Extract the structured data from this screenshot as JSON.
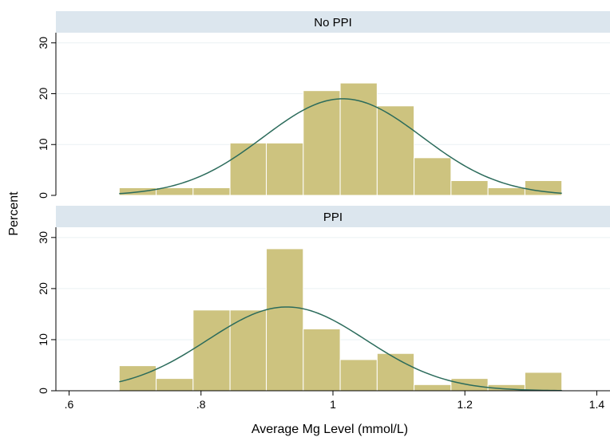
{
  "chart_data": {
    "type": "bar",
    "subtype": "histogram-with-normal-curve",
    "xlabel": "Average Mg Level (mmol/L)",
    "ylabel": "Percent",
    "xlim": [
      0.58,
      1.42
    ],
    "ylim": [
      0,
      32
    ],
    "x_ticks": [
      0.6,
      0.8,
      1,
      1.2,
      1.4
    ],
    "x_tick_labels": [
      ".6",
      ".8",
      "1",
      "1.2",
      "1.4"
    ],
    "y_ticks": [
      0,
      10,
      20,
      30
    ],
    "y_tick_labels": [
      "0",
      "10",
      "20",
      "30"
    ],
    "grid": true,
    "bar_color": "#cdc37f",
    "bar_edge_color": "#ffffff",
    "curve_color": "#2b6b5b",
    "strip_color": "#dce6ee",
    "bin_edges": [
      0.676,
      0.732,
      0.788,
      0.844,
      0.899,
      0.955,
      1.011,
      1.067,
      1.123,
      1.179,
      1.235,
      1.291,
      1.347
    ],
    "panels": [
      {
        "name": "No PPI",
        "values": [
          1.5,
          1.5,
          1.5,
          10.3,
          10.3,
          20.6,
          22.1,
          17.6,
          7.4,
          2.9,
          1.5,
          2.9
        ],
        "normal_curve": {
          "mean": 1.015,
          "sd": 0.12,
          "peak": 19.0
        }
      },
      {
        "name": "PPI",
        "values": [
          4.9,
          2.4,
          15.8,
          15.8,
          27.8,
          12.1,
          6.1,
          7.3,
          1.2,
          2.4,
          1.2,
          3.6
        ],
        "normal_curve": {
          "mean": 0.93,
          "sd": 0.12,
          "peak": 16.4
        }
      }
    ]
  }
}
